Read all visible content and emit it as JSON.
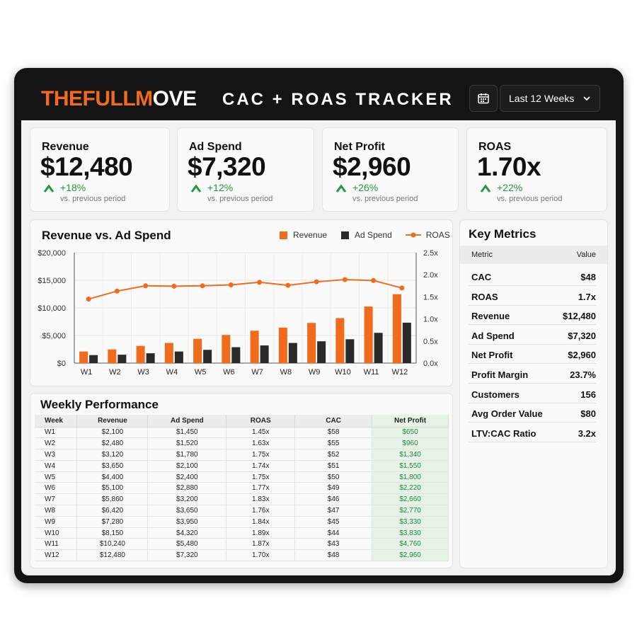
{
  "header": {
    "logo_part1": "THEFULLM",
    "logo_part2": "OVE",
    "title": "CAC + ROAS TRACKER",
    "date_range": "Last 12 Weeks",
    "calendar_icon": "calendar-icon",
    "dropdown_icon": "chevron-down-icon"
  },
  "kpis": [
    {
      "label": "Revenue",
      "value": "$12,480",
      "change": "+18%",
      "note": "vs. previous period"
    },
    {
      "label": "Ad Spend",
      "value": "$7,320",
      "change": "+12%",
      "note": "vs. previous period"
    },
    {
      "label": "Net Profit",
      "value": "$2,960",
      "change": "+26%",
      "note": "vs. previous period"
    },
    {
      "label": "ROAS",
      "value": "1.70x",
      "change": "+22%",
      "note": "vs. previous period"
    }
  ],
  "colors": {
    "accent": "#f26a1b",
    "dark": "#2a2a2a",
    "positive": "#1f9a3e",
    "frame": "#141414"
  },
  "chart_title": "Revenue vs. Ad Spend",
  "chart_data": {
    "type": "bar",
    "title": "Revenue vs. Ad Spend",
    "categories": [
      "W1",
      "W2",
      "W3",
      "W4",
      "W5",
      "W6",
      "W7",
      "W8",
      "W9",
      "W10",
      "W11",
      "W12"
    ],
    "series": [
      {
        "name": "Revenue",
        "kind": "bar",
        "axis": "left",
        "color": "#f26a1b",
        "values": [
          2100,
          2480,
          3120,
          3650,
          4400,
          5100,
          5860,
          6420,
          7280,
          8150,
          10240,
          12480
        ]
      },
      {
        "name": "Ad Spend",
        "kind": "bar",
        "axis": "left",
        "color": "#2a2a2a",
        "values": [
          1450,
          1520,
          1780,
          2100,
          2400,
          2880,
          3200,
          3650,
          3950,
          4320,
          5480,
          7320
        ]
      },
      {
        "name": "ROAS",
        "kind": "line",
        "axis": "right",
        "color": "#f26a1b",
        "values": [
          1.45,
          1.63,
          1.75,
          1.74,
          1.75,
          1.77,
          1.83,
          1.76,
          1.84,
          1.89,
          1.87,
          1.7
        ]
      }
    ],
    "ylim": [
      0,
      20000
    ],
    "yticks": [
      "$0",
      "$5,000",
      "$10,000",
      "$15,000",
      "$20,000"
    ],
    "y2lim": [
      0,
      2.5
    ],
    "y2ticks": [
      "0.0x",
      "0.5x",
      "1.0x",
      "1.5x",
      "2.0x",
      "2.5x"
    ],
    "grid": true,
    "legend": "top-right"
  },
  "weekly": {
    "title": "Weekly Performance",
    "columns": [
      "Week",
      "Revenue",
      "Ad Spend",
      "ROAS",
      "CAC",
      "Net Profit"
    ],
    "rows": [
      [
        "W1",
        "$2,100",
        "$1,450",
        "1.45x",
        "$58",
        "$650"
      ],
      [
        "W2",
        "$2,480",
        "$1,520",
        "1.63x",
        "$55",
        "$960"
      ],
      [
        "W3",
        "$3,120",
        "$1,780",
        "1.75x",
        "$52",
        "$1,340"
      ],
      [
        "W4",
        "$3,650",
        "$2,100",
        "1.74x",
        "$51",
        "$1,550"
      ],
      [
        "W5",
        "$4,400",
        "$2,400",
        "1.75x",
        "$50",
        "$1,800"
      ],
      [
        "W6",
        "$5,100",
        "$2,880",
        "1.77x",
        "$49",
        "$2,220"
      ],
      [
        "W7",
        "$5,860",
        "$3,200",
        "1.83x",
        "$46",
        "$2,660"
      ],
      [
        "W8",
        "$6,420",
        "$3,650",
        "1.76x",
        "$47",
        "$2,770"
      ],
      [
        "W9",
        "$7,280",
        "$3,950",
        "1.84x",
        "$45",
        "$3,330"
      ],
      [
        "W10",
        "$8,150",
        "$4,320",
        "1.89x",
        "$44",
        "$3,830"
      ],
      [
        "W11",
        "$10,240",
        "$5,480",
        "1.87x",
        "$43",
        "$4,760"
      ],
      [
        "W12",
        "$12,480",
        "$7,320",
        "1.70x",
        "$48",
        "$2,960"
      ]
    ]
  },
  "key_metrics": {
    "title": "Key Metrics",
    "col_metric": "Metric",
    "col_value": "Value",
    "rows": [
      {
        "label": "CAC",
        "value": "$48"
      },
      {
        "label": "ROAS",
        "value": "1.7x"
      },
      {
        "label": "Revenue",
        "value": "$12,480"
      },
      {
        "label": "Ad Spend",
        "value": "$7,320"
      },
      {
        "label": "Net Profit",
        "value": "$2,960"
      },
      {
        "label": "Profit Margin",
        "value": "23.7%"
      },
      {
        "label": "Customers",
        "value": "156"
      },
      {
        "label": "Avg Order Value",
        "value": "$80"
      },
      {
        "label": "LTV:CAC Ratio",
        "value": "3.2x"
      }
    ]
  }
}
